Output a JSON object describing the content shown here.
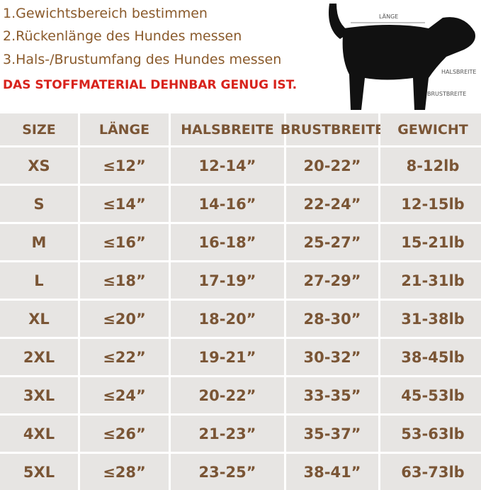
{
  "instructions": [
    "1.Gewichtsbereich bestimmen",
    "2.Rückenlänge des Hundes messen",
    "3.Hals-/Brustumfang des Hundes messen",
    "DAS STOFFMATERIAL DEHNBAR GENUG IST."
  ],
  "diagram": {
    "length": "LÄNGE",
    "neck": "HALSBREITE",
    "chest": "BRUSTBREITE"
  },
  "table": {
    "columns": [
      "SIZE",
      "LÄNGE",
      "HALSBREITE",
      "BRUSTBREITE",
      "GEWICHT"
    ],
    "rows": [
      [
        "XS",
        "≤12”",
        "12-14”",
        "20-22”",
        "8-12lb"
      ],
      [
        "S",
        "≤14”",
        "14-16”",
        "22-24”",
        "12-15lb"
      ],
      [
        "M",
        "≤16”",
        "16-18”",
        "25-27”",
        "15-21lb"
      ],
      [
        "L",
        "≤18”",
        "17-19”",
        "27-29”",
        "21-31lb"
      ],
      [
        "XL",
        "≤20”",
        "18-20”",
        "28-30”",
        "31-38lb"
      ],
      [
        "2XL",
        "≤22”",
        "19-21”",
        "30-32”",
        "38-45lb"
      ],
      [
        "3XL",
        "≤24”",
        "20-22”",
        "33-35”",
        "45-53lb"
      ],
      [
        "4XL",
        "≤26”",
        "21-23”",
        "35-37”",
        "53-63lb"
      ],
      [
        "5XL",
        "≤28”",
        "23-25”",
        "38-41”",
        "63-73lb"
      ]
    ]
  }
}
